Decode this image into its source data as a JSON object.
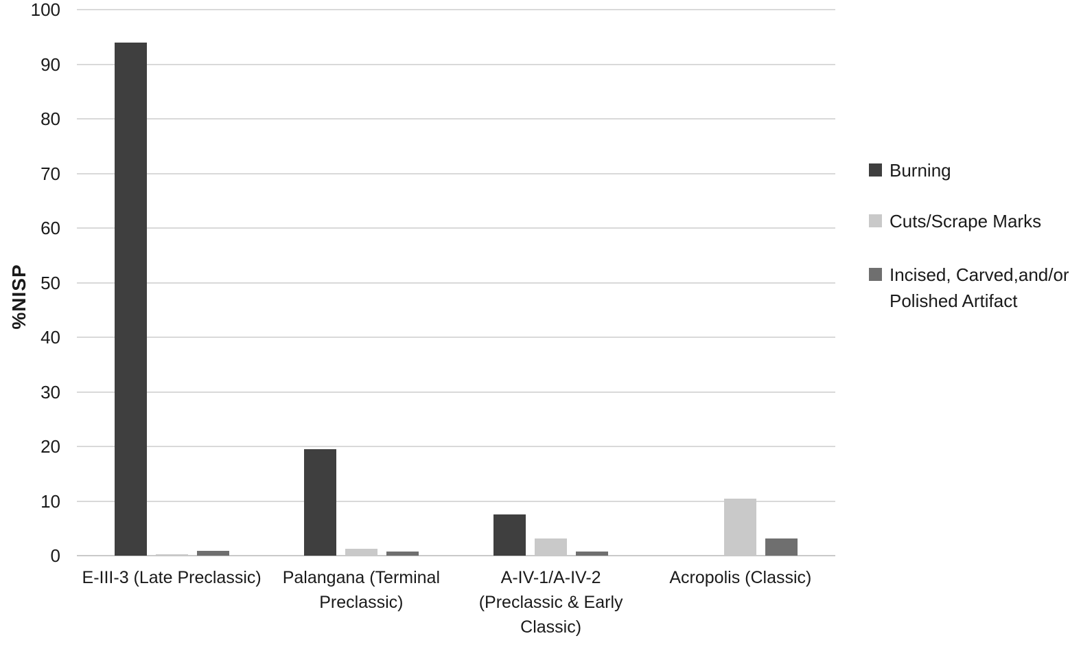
{
  "chart_data": {
    "type": "bar",
    "title": "",
    "xlabel": "",
    "ylabel": "%NISP",
    "ylim": [
      0,
      100
    ],
    "yticks": [
      0,
      10,
      20,
      30,
      40,
      50,
      60,
      70,
      80,
      90,
      100
    ],
    "grid": true,
    "legend_position": "right",
    "categories": [
      "E-III-3 (Late Preclassic)",
      "Palangana (Terminal Preclassic)",
      "A-IV-1/A-IV-2 (Preclassic & Early Classic)",
      "Acropolis (Classic)"
    ],
    "category_label_lines": [
      [
        "E-III-3 (Late Preclassic)"
      ],
      [
        "Palangana (Terminal",
        "Preclassic)"
      ],
      [
        "A-IV-1/A-IV-2",
        "(Preclassic & Early",
        "Classic)"
      ],
      [
        "Acropolis (Classic)"
      ]
    ],
    "series": [
      {
        "name": "Burning",
        "color": "#3f3f3f",
        "values": [
          94,
          19.5,
          7.6,
          0
        ],
        "legend_lines": [
          "Burning"
        ]
      },
      {
        "name": "Cuts/Scrape Marks",
        "color": "#c9c9c9",
        "values": [
          0.3,
          1.3,
          3.1,
          10.5
        ],
        "legend_lines": [
          "Cuts/Scrape Marks"
        ]
      },
      {
        "name": "Incised, Carved,and/or Polished Artifact",
        "color": "#6f6f6f",
        "values": [
          0.9,
          0.7,
          0.7,
          3.2
        ],
        "legend_lines": [
          "Incised, Carved,and/or",
          "Polished Artifact"
        ]
      }
    ]
  },
  "colors": {
    "gridline": "#d9d9d9",
    "baseline": "#c9c9c9",
    "text": "#1a1a1a",
    "background": "#ffffff"
  }
}
